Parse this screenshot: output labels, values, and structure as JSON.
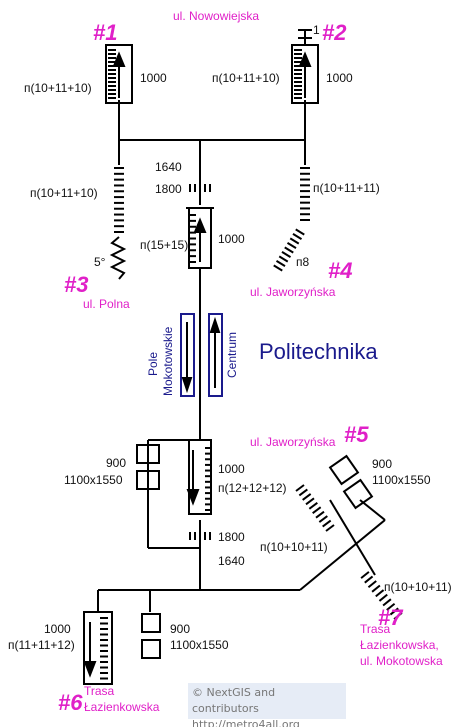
{
  "streets": {
    "nowowiejska": "ul. Nowowiejska",
    "polna": "ul. Polna",
    "jaworzynska_upper": "ul. Jaworzyńska",
    "jaworzynska_lower": "ul. Jaworzyńska",
    "lazienkowska_7a": "Trasa",
    "lazienkowska_7b": "Łazienkowska,",
    "lazienkowska_7c": "ul. Mokotowska",
    "lazienkowska_6a": "Trasa",
    "lazienkowska_6b": "Łazienkowska"
  },
  "exits": {
    "e1": "#1",
    "e2": "#2",
    "e3": "#3",
    "e4": "#4",
    "e5": "#5",
    "e6": "#6",
    "e7": "#7"
  },
  "labels": {
    "e1_stairs": "п(10+11+10)",
    "e1_esc": "1000",
    "e2_one": "1",
    "e2_stairs": "п(10+11+10)",
    "e2_esc": "1000",
    "w1640": "1640",
    "w1800": "1800",
    "e3_stairs": "п(10+11+10)",
    "e3_angle": "5°",
    "e4_stairs": "п(10+11+11)",
    "e4_p8": "п8",
    "upper_stairs": "п(15+15)",
    "upper_esc": "1000",
    "side_left": "Pole",
    "side_left2": "Mokotowskie",
    "side_right": "Centrum",
    "station": "Politechnika",
    "lower_900": "900",
    "lower_size": "1100x1550",
    "lower_esc": "1000",
    "lower_stairs": "п(12+12+12)",
    "lower_1800": "1800",
    "lower_1640": "1640",
    "e5_900": "900",
    "e5_size": "1100x1550",
    "e5_stairs": "п(10+10+11)",
    "e7_stairs": "п(10+10+11)",
    "e6_esc": "1000",
    "e6_stairs": "п(11+11+12)",
    "e6_900": "900",
    "e6_size": "1100x1550"
  },
  "credits": {
    "line1": "© NextGIS and contributors",
    "line2": "http://metro4all.org"
  },
  "colors": {
    "accent": "#e020c8",
    "station": "#1a1a8c",
    "credit_bg": "#e6ecf6"
  }
}
